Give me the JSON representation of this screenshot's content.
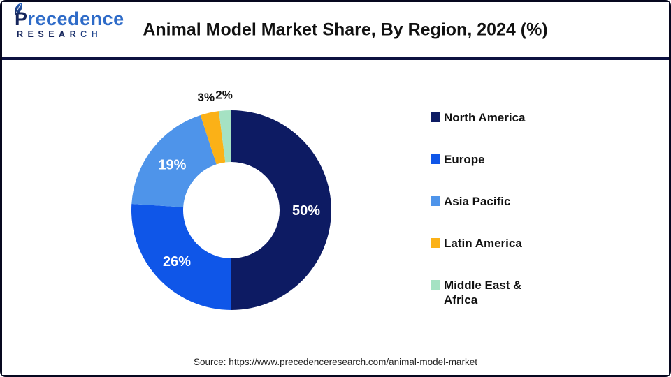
{
  "header": {
    "logo": {
      "brand_first_letter": "P",
      "brand_rest": "recedence",
      "brand_bottom": "RESEARCH"
    },
    "title": "Animal Model Market Share, By Region, 2024 (%)"
  },
  "chart_data": {
    "type": "pie",
    "subtype": "donut",
    "title": "Animal Model Market Share, By Region, 2024 (%)",
    "start_angle_deg": 0,
    "direction": "clockwise",
    "categories": [
      "North America",
      "Europe",
      "Asia Pacific",
      "Latin America",
      "Middle East & Africa"
    ],
    "values": [
      50,
      26,
      19,
      3,
      2
    ],
    "labels": [
      "50%",
      "26%",
      "19%",
      "3%",
      "2%"
    ],
    "colors": [
      "#0d1b63",
      "#0f56e8",
      "#4e94ea",
      "#fbb117",
      "#a5e2c3"
    ],
    "legend_position": "right",
    "inner_radius_ratio": 0.48
  },
  "footer": {
    "source": "Source: https://www.precedenceresearch.com/animal-model-market"
  }
}
